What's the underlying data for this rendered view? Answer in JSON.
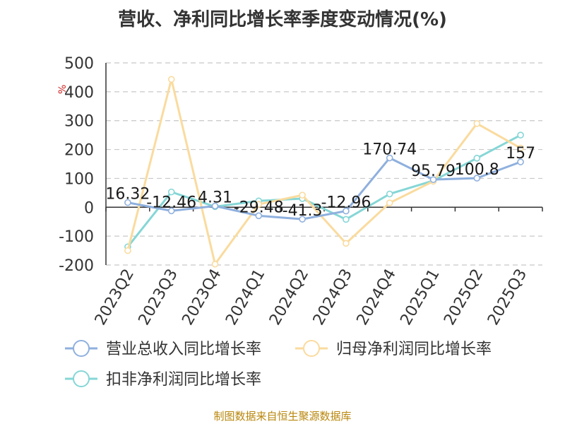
{
  "chart_data": {
    "type": "line",
    "title": "营收、净利同比增长率季度变动情况(%)",
    "ylabel": "%",
    "xlabel": "",
    "ylim": [
      -200,
      500
    ],
    "yticks": [
      "500",
      "400",
      "300",
      "200",
      "100",
      "0",
      "-100",
      "-200"
    ],
    "grid": true,
    "legend_position": "bottom",
    "categories": [
      "2023Q2",
      "2023Q3",
      "2023Q4",
      "2024Q1",
      "2024Q2",
      "2024Q3",
      "2024Q4",
      "2025Q1",
      "2025Q2",
      "2025Q3"
    ],
    "series": [
      {
        "name": "营业总收入同比增长率",
        "color": "#8fb0de",
        "values": [
          16.32,
          -12.46,
          4.31,
          -29.48,
          -41.3,
          -12.96,
          170.74,
          95.79,
          100.8,
          157
        ],
        "labels": [
          "16.32",
          "-12.46",
          "4.31",
          "-29.48",
          "-41.3",
          "-12.96",
          "170.74",
          "95.79",
          "100.8",
          "157"
        ]
      },
      {
        "name": "归母净利润同比增长率",
        "color": "#fadb9e",
        "values": [
          -150,
          443,
          -197,
          10,
          42,
          -125,
          15,
          90,
          290,
          205
        ]
      },
      {
        "name": "扣非净利润同比增长率",
        "color": "#86d6d6",
        "values": [
          -137,
          53,
          2,
          22,
          30,
          -42,
          46,
          92,
          170,
          250
        ]
      }
    ],
    "source": "制图数据来自恒生聚源数据库"
  }
}
